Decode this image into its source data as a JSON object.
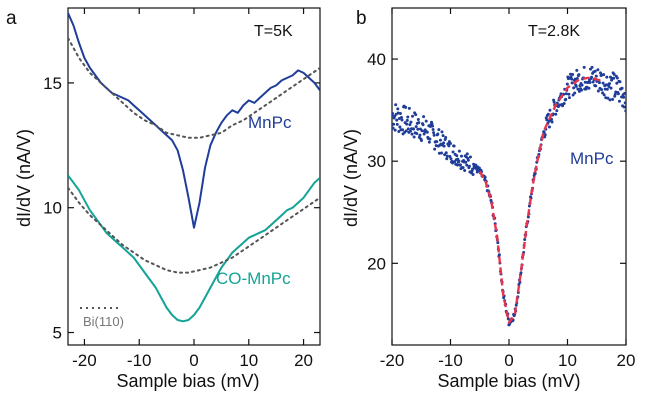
{
  "colors": {
    "mnpc": "#1f3d99",
    "co_mnpc": "#14a396",
    "bi110": "#555555",
    "fit": "#e8344a",
    "axis": "#111111"
  },
  "chart_data": [
    {
      "panel_label": "a",
      "type": "line",
      "annotation": "T=5K",
      "xlabel": "Sample bias (mV)",
      "ylabel": "dI/dV (nA/V)",
      "xlim": [
        -23,
        23
      ],
      "ylim": [
        4.5,
        18
      ],
      "xticks": [
        -20,
        -10,
        0,
        10,
        20
      ],
      "yticks": [
        5,
        10,
        15
      ],
      "legend_entries": [
        "Bi(110)"
      ],
      "series": [
        {
          "name": "MnPc",
          "style": "solid",
          "color": "#1f3d99",
          "x": [
            -23,
            -22,
            -21,
            -20,
            -19,
            -18,
            -17,
            -16,
            -15,
            -14,
            -13,
            -12,
            -11,
            -10,
            -9,
            -8,
            -7,
            -6,
            -5,
            -4,
            -3,
            -2,
            -1,
            0,
            1,
            2,
            3,
            4,
            5,
            6,
            7,
            8,
            9,
            10,
            11,
            12,
            13,
            14,
            15,
            16,
            17,
            18,
            19,
            20,
            21,
            22,
            23
          ],
          "y": [
            17.8,
            17.3,
            16.6,
            16.0,
            15.6,
            15.3,
            15.0,
            14.8,
            14.6,
            14.5,
            14.4,
            14.3,
            14.1,
            13.9,
            13.7,
            13.5,
            13.3,
            13.1,
            12.9,
            12.7,
            12.3,
            11.5,
            10.4,
            9.2,
            10.2,
            11.6,
            12.5,
            13.0,
            13.4,
            13.7,
            13.9,
            13.8,
            14.1,
            14.3,
            14.2,
            14.4,
            14.6,
            14.8,
            14.9,
            15.1,
            15.2,
            15.3,
            15.5,
            15.4,
            15.2,
            15.0,
            14.7
          ]
        },
        {
          "name": "MnPc Bi(110)",
          "style": "dotted",
          "color": "#555555",
          "x": [
            -23,
            -21,
            -19,
            -17,
            -15,
            -13,
            -11,
            -9,
            -7,
            -5,
            -3,
            -1,
            1,
            3,
            5,
            7,
            9,
            11,
            13,
            15,
            17,
            19,
            21,
            23
          ],
          "y": [
            16.8,
            16.0,
            15.4,
            15.0,
            14.6,
            14.2,
            13.8,
            13.5,
            13.3,
            13.0,
            12.9,
            12.8,
            12.8,
            12.9,
            13.0,
            13.3,
            13.5,
            13.8,
            14.1,
            14.4,
            14.7,
            15.0,
            15.3,
            15.6
          ]
        },
        {
          "name": "CO-MnPc",
          "style": "solid",
          "color": "#14a396",
          "x": [
            -23,
            -22,
            -21,
            -20,
            -19,
            -18,
            -17,
            -16,
            -15,
            -14,
            -13,
            -12,
            -11,
            -10,
            -9,
            -8,
            -7,
            -6,
            -5,
            -4,
            -3,
            -2,
            -1,
            0,
            1,
            2,
            3,
            4,
            5,
            6,
            7,
            8,
            9,
            10,
            11,
            12,
            13,
            14,
            15,
            16,
            17,
            18,
            19,
            20,
            21,
            22,
            23
          ],
          "y": [
            11.3,
            11.0,
            10.7,
            10.3,
            9.9,
            9.6,
            9.3,
            9.0,
            8.8,
            8.6,
            8.4,
            8.2,
            8.0,
            7.7,
            7.4,
            7.1,
            6.8,
            6.4,
            6.0,
            5.7,
            5.5,
            5.45,
            5.5,
            5.7,
            6.0,
            6.4,
            6.8,
            7.2,
            7.6,
            7.9,
            8.2,
            8.4,
            8.6,
            8.8,
            8.9,
            9.0,
            9.1,
            9.3,
            9.5,
            9.7,
            9.9,
            10.0,
            10.2,
            10.4,
            10.7,
            11.0,
            11.2
          ]
        },
        {
          "name": "CO-MnPc Bi(110)",
          "style": "dotted",
          "color": "#555555",
          "x": [
            -23,
            -21,
            -19,
            -17,
            -15,
            -13,
            -11,
            -9,
            -7,
            -5,
            -3,
            -1,
            1,
            3,
            5,
            7,
            9,
            11,
            13,
            15,
            17,
            19,
            21,
            23
          ],
          "y": [
            10.8,
            10.2,
            9.7,
            9.3,
            8.9,
            8.5,
            8.2,
            7.9,
            7.7,
            7.5,
            7.4,
            7.4,
            7.5,
            7.6,
            7.8,
            8.0,
            8.3,
            8.6,
            8.9,
            9.2,
            9.5,
            9.8,
            10.1,
            10.4
          ]
        }
      ]
    },
    {
      "panel_label": "b",
      "type": "scatter",
      "annotation": "T=2.8K",
      "xlabel": "Sample bias (mV)",
      "ylabel": "dI/dV (nA/V)",
      "xlim": [
        -20,
        20
      ],
      "ylim": [
        12,
        45
      ],
      "xticks": [
        -20,
        -10,
        0,
        10,
        20
      ],
      "yticks": [
        20,
        30,
        40
      ],
      "series": [
        {
          "name": "MnPc",
          "style": "points",
          "color": "#1f3d99",
          "x": [
            -20,
            -18,
            -16,
            -14,
            -12,
            -10,
            -8,
            -6,
            -5,
            -4,
            -3,
            -2,
            -1,
            0,
            1,
            2,
            3,
            4,
            5,
            6,
            8,
            10,
            12,
            14,
            16,
            18,
            20
          ],
          "y": [
            34.5,
            34.0,
            33.5,
            33.0,
            32.0,
            31.0,
            30.2,
            29.5,
            29.0,
            28.0,
            26.0,
            22.5,
            17.0,
            14.2,
            15.0,
            19.0,
            23.5,
            27.5,
            30.5,
            33.0,
            35.5,
            37.2,
            38.0,
            38.2,
            37.8,
            37.2,
            36.5
          ]
        },
        {
          "name": "fit",
          "style": "dashed",
          "color": "#e8344a",
          "x": [
            -5,
            -4,
            -3,
            -2,
            -1,
            0,
            1,
            2,
            3,
            4,
            5,
            6,
            8,
            10,
            12,
            14,
            16
          ],
          "y": [
            29.0,
            28.0,
            26.0,
            22.5,
            17.0,
            14.2,
            15.0,
            19.0,
            23.5,
            27.5,
            30.5,
            33.0,
            35.5,
            37.2,
            38.0,
            38.2,
            37.8
          ]
        }
      ]
    }
  ]
}
